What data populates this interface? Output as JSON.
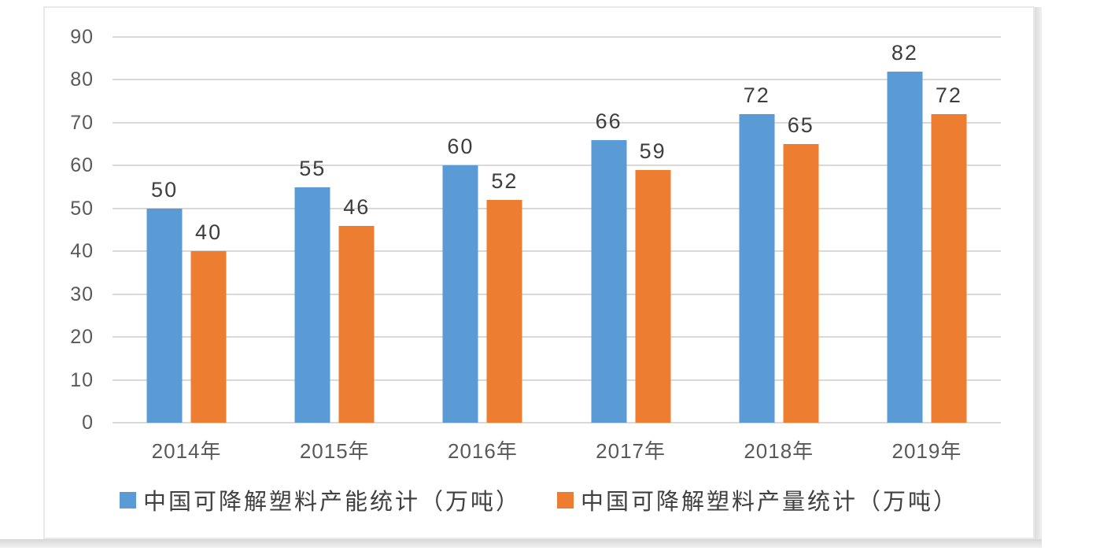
{
  "chart_data": {
    "type": "bar",
    "title": "",
    "xlabel": "",
    "ylabel": "",
    "categories": [
      "2014年",
      "2015年",
      "2016年",
      "2017年",
      "2018年",
      "2019年"
    ],
    "series": [
      {
        "name": "中国可降解塑料产能统计（万吨）",
        "color": "#5B9BD5",
        "values": [
          50,
          55,
          60,
          66,
          72,
          82
        ]
      },
      {
        "name": "中国可降解塑料产量统计（万吨）",
        "color": "#ED7D31",
        "values": [
          40,
          46,
          52,
          59,
          65,
          72
        ]
      }
    ],
    "ylim": [
      0,
      90
    ],
    "yticks": [
      0,
      10,
      20,
      30,
      40,
      50,
      60,
      70,
      80,
      90
    ],
    "grid": true,
    "data_labels": true,
    "legend_position": "bottom"
  },
  "colors": {
    "series_capacity": "#5B9BD5",
    "series_production": "#ED7D31",
    "gridline": "#D9D9D9",
    "axis_text": "#595959",
    "data_label_text": "#3D3D3D",
    "legend_text": "#404040",
    "chart_border": "#E9E9E9",
    "background": "#FFFFFF"
  }
}
